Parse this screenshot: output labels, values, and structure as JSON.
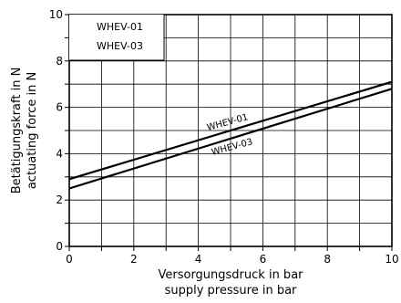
{
  "chart_data": {
    "type": "line",
    "xlabel": "Versorgungsdruck in bar",
    "xlabel_2": "supply pressure in bar",
    "ylabel": "Betätigungskraft in N",
    "ylabel_2": "actuating force in N",
    "xlim": [
      0,
      10
    ],
    "ylim": [
      0,
      10
    ],
    "x_ticks": [
      "0",
      "2",
      "4",
      "6",
      "8",
      "10"
    ],
    "y_ticks": [
      "0",
      "2",
      "4",
      "6",
      "8",
      "10"
    ],
    "grid": true,
    "legend": {
      "placement": "top-left",
      "entries": [
        "WHEV-01",
        "WHEV-03"
      ]
    },
    "series": [
      {
        "name": "WHEV-01",
        "x": [
          0,
          10
        ],
        "y": [
          2.9,
          7.1
        ]
      },
      {
        "name": "WHEV-03",
        "x": [
          0,
          10
        ],
        "y": [
          2.5,
          6.8
        ]
      }
    ]
  }
}
